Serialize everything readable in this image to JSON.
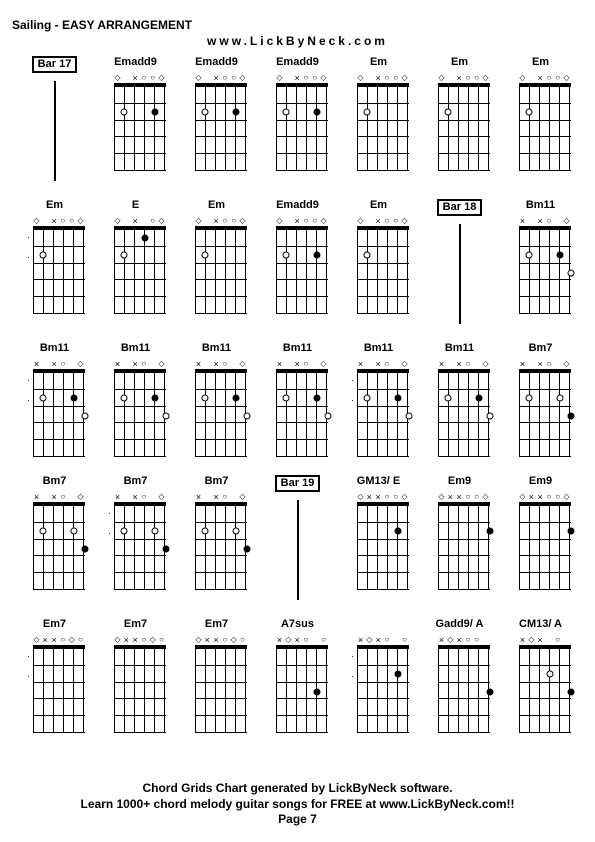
{
  "header": {
    "title": "Sailing - EASY ARRANGEMENT",
    "subtitle": "www.LickByNeck.com"
  },
  "footer": {
    "line1": "Chord Grids Chart generated by LickByNeck software.",
    "line2": "Learn 1000+ chord melody guitar songs for FREE at www.LickByNeck.com!!",
    "page": "Page 7"
  },
  "layout": {
    "cols": 7,
    "rows": 5,
    "board_width": 52,
    "board_height": 88,
    "num_frets": 5,
    "num_strings": 6
  },
  "cells": [
    {
      "type": "bar",
      "label": "Bar 17"
    },
    {
      "type": "chord",
      "name": "Emadd9",
      "nut": [
        "d",
        "",
        "x",
        "o",
        "o",
        "d"
      ],
      "dots": [
        {
          "s": 1,
          "f": 2
        },
        {
          "s": 4,
          "f": 2,
          "filled": true
        }
      ],
      "left": ""
    },
    {
      "type": "chord",
      "name": "Emadd9",
      "nut": [
        "d",
        "",
        "x",
        "o",
        "o",
        "d"
      ],
      "dots": [
        {
          "s": 1,
          "f": 2
        },
        {
          "s": 4,
          "f": 2,
          "filled": true
        }
      ],
      "left": ""
    },
    {
      "type": "chord",
      "name": "Emadd9",
      "nut": [
        "d",
        "",
        "x",
        "o",
        "o",
        "d"
      ],
      "dots": [
        {
          "s": 1,
          "f": 2
        },
        {
          "s": 4,
          "f": 2,
          "filled": true
        }
      ],
      "left": ""
    },
    {
      "type": "chord",
      "name": "Em",
      "nut": [
        "d",
        "",
        "x",
        "o",
        "o",
        "d"
      ],
      "dots": [
        {
          "s": 1,
          "f": 2
        }
      ],
      "left": ""
    },
    {
      "type": "chord",
      "name": "Em",
      "nut": [
        "d",
        "",
        "x",
        "o",
        "o",
        "d"
      ],
      "dots": [
        {
          "s": 1,
          "f": 2
        }
      ],
      "left": ""
    },
    {
      "type": "chord",
      "name": "Em",
      "nut": [
        "d",
        "",
        "x",
        "o",
        "o",
        "d"
      ],
      "dots": [
        {
          "s": 1,
          "f": 2
        }
      ],
      "left": ""
    },
    {
      "type": "chord",
      "name": "Em",
      "nut": [
        "d",
        "",
        "x",
        "o",
        "o",
        "d"
      ],
      "dots": [
        {
          "s": 1,
          "f": 2
        }
      ],
      "left": ":"
    },
    {
      "type": "chord",
      "name": "E",
      "nut": [
        "d",
        "",
        "x",
        "",
        "o",
        "d"
      ],
      "dots": [
        {
          "s": 1,
          "f": 2
        },
        {
          "s": 3,
          "f": 1,
          "filled": true
        }
      ],
      "left": ""
    },
    {
      "type": "chord",
      "name": "Em",
      "nut": [
        "d",
        "",
        "x",
        "o",
        "o",
        "d"
      ],
      "dots": [
        {
          "s": 1,
          "f": 2
        }
      ],
      "left": ""
    },
    {
      "type": "chord",
      "name": "Emadd9",
      "nut": [
        "d",
        "",
        "x",
        "o",
        "o",
        "d"
      ],
      "dots": [
        {
          "s": 1,
          "f": 2
        },
        {
          "s": 4,
          "f": 2,
          "filled": true
        }
      ],
      "left": ""
    },
    {
      "type": "chord",
      "name": "Em",
      "nut": [
        "d",
        "",
        "x",
        "o",
        "o",
        "d"
      ],
      "dots": [
        {
          "s": 1,
          "f": 2
        }
      ],
      "left": ""
    },
    {
      "type": "bar",
      "label": "Bar 18"
    },
    {
      "type": "chord",
      "name": "Bm11",
      "nut": [
        "x",
        "",
        "x",
        "o",
        "",
        "d"
      ],
      "dots": [
        {
          "s": 1,
          "f": 2
        },
        {
          "s": 4,
          "f": 2,
          "filled": true
        },
        {
          "s": 5,
          "f": 3
        }
      ],
      "left": ""
    },
    {
      "type": "chord",
      "name": "Bm11",
      "nut": [
        "x",
        "",
        "x",
        "o",
        "",
        "d"
      ],
      "dots": [
        {
          "s": 1,
          "f": 2
        },
        {
          "s": 4,
          "f": 2,
          "filled": true
        },
        {
          "s": 5,
          "f": 3
        }
      ],
      "left": ":"
    },
    {
      "type": "chord",
      "name": "Bm11",
      "nut": [
        "x",
        "",
        "x",
        "o",
        "",
        "d"
      ],
      "dots": [
        {
          "s": 1,
          "f": 2
        },
        {
          "s": 4,
          "f": 2,
          "filled": true
        },
        {
          "s": 5,
          "f": 3
        }
      ],
      "left": ""
    },
    {
      "type": "chord",
      "name": "Bm11",
      "nut": [
        "x",
        "",
        "x",
        "o",
        "",
        "d"
      ],
      "dots": [
        {
          "s": 1,
          "f": 2
        },
        {
          "s": 4,
          "f": 2,
          "filled": true
        },
        {
          "s": 5,
          "f": 3
        }
      ],
      "left": ""
    },
    {
      "type": "chord",
      "name": "Bm11",
      "nut": [
        "x",
        "",
        "x",
        "o",
        "",
        "d"
      ],
      "dots": [
        {
          "s": 1,
          "f": 2
        },
        {
          "s": 4,
          "f": 2,
          "filled": true
        },
        {
          "s": 5,
          "f": 3
        }
      ],
      "left": ""
    },
    {
      "type": "chord",
      "name": "Bm11",
      "nut": [
        "x",
        "",
        "x",
        "o",
        "",
        "d"
      ],
      "dots": [
        {
          "s": 1,
          "f": 2
        },
        {
          "s": 4,
          "f": 2,
          "filled": true
        },
        {
          "s": 5,
          "f": 3
        }
      ],
      "left": ":"
    },
    {
      "type": "chord",
      "name": "Bm11",
      "nut": [
        "x",
        "",
        "x",
        "o",
        "",
        "d"
      ],
      "dots": [
        {
          "s": 1,
          "f": 2
        },
        {
          "s": 4,
          "f": 2,
          "filled": true
        },
        {
          "s": 5,
          "f": 3
        }
      ],
      "left": ""
    },
    {
      "type": "chord",
      "name": "Bm7",
      "nut": [
        "x",
        "",
        "x",
        "o",
        "",
        "d"
      ],
      "dots": [
        {
          "s": 1,
          "f": 2
        },
        {
          "s": 4,
          "f": 2
        },
        {
          "s": 5,
          "f": 3,
          "filled": true
        }
      ],
      "left": ""
    },
    {
      "type": "chord",
      "name": "Bm7",
      "nut": [
        "x",
        "",
        "x",
        "o",
        "",
        "d"
      ],
      "dots": [
        {
          "s": 1,
          "f": 2
        },
        {
          "s": 4,
          "f": 2
        },
        {
          "s": 5,
          "f": 3,
          "filled": true
        }
      ],
      "left": ""
    },
    {
      "type": "chord",
      "name": "Bm7",
      "nut": [
        "x",
        "",
        "x",
        "o",
        "",
        "d"
      ],
      "dots": [
        {
          "s": 1,
          "f": 2
        },
        {
          "s": 4,
          "f": 2
        },
        {
          "s": 5,
          "f": 3,
          "filled": true
        }
      ],
      "left": ":"
    },
    {
      "type": "chord",
      "name": "Bm7",
      "nut": [
        "x",
        "",
        "x",
        "o",
        "",
        "d"
      ],
      "dots": [
        {
          "s": 1,
          "f": 2
        },
        {
          "s": 4,
          "f": 2
        },
        {
          "s": 5,
          "f": 3,
          "filled": true
        }
      ],
      "left": ""
    },
    {
      "type": "bar",
      "label": "Bar 19"
    },
    {
      "type": "chord",
      "name": "GM13/ E",
      "nut": [
        "d",
        "x",
        "x",
        "o",
        "o",
        "d"
      ],
      "dots": [
        {
          "s": 4,
          "f": 2,
          "filled": true
        }
      ],
      "left": ""
    },
    {
      "type": "chord",
      "name": "Em9",
      "nut": [
        "d",
        "x",
        "x",
        "o",
        "o",
        "d"
      ],
      "dots": [
        {
          "s": 5,
          "f": 2,
          "filled": true
        }
      ],
      "left": ""
    },
    {
      "type": "chord",
      "name": "Em9",
      "nut": [
        "d",
        "x",
        "x",
        "o",
        "o",
        "d"
      ],
      "dots": [
        {
          "s": 5,
          "f": 2,
          "filled": true
        }
      ],
      "left": ""
    },
    {
      "type": "chord",
      "name": "Em7",
      "nut": [
        "d",
        "x",
        "x",
        "o",
        "d",
        "o"
      ],
      "dots": [],
      "left": ":"
    },
    {
      "type": "chord",
      "name": "Em7",
      "nut": [
        "d",
        "x",
        "x",
        "o",
        "d",
        "o"
      ],
      "dots": [],
      "left": ""
    },
    {
      "type": "chord",
      "name": "Em7",
      "nut": [
        "d",
        "x",
        "x",
        "o",
        "d",
        "o"
      ],
      "dots": [],
      "left": ""
    },
    {
      "type": "chord",
      "name": "A7sus",
      "nut": [
        "x",
        "d",
        "x",
        "o",
        "",
        "o"
      ],
      "dots": [
        {
          "s": 4,
          "f": 3,
          "filled": true
        }
      ],
      "left": ""
    },
    {
      "type": "chord",
      "name": "",
      "nut": [
        "x",
        "d",
        "x",
        "o",
        "",
        "o"
      ],
      "dots": [
        {
          "s": 4,
          "f": 2,
          "filled": true
        }
      ],
      "left": ":"
    },
    {
      "type": "chord",
      "name": "Gadd9/ A",
      "nut": [
        "x",
        "d",
        "x",
        "o",
        "o",
        ""
      ],
      "dots": [
        {
          "s": 5,
          "f": 3,
          "filled": true
        }
      ],
      "left": ""
    },
    {
      "type": "chord",
      "name": "CM13/ A",
      "nut": [
        "x",
        "d",
        "x",
        "",
        "o",
        ""
      ],
      "dots": [
        {
          "s": 3,
          "f": 2
        },
        {
          "s": 5,
          "f": 3,
          "filled": true
        }
      ],
      "left": ""
    }
  ]
}
